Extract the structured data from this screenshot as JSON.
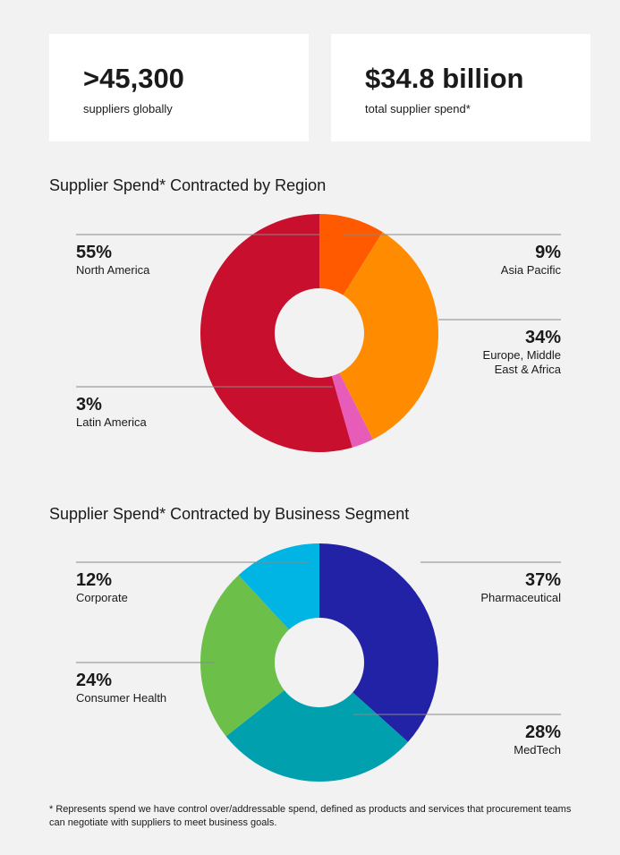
{
  "stats": [
    {
      "value": ">45,300",
      "label": "suppliers globally"
    },
    {
      "value": "$34.8 billion",
      "label": "total supplier spend*"
    }
  ],
  "chart_data": [
    {
      "type": "pie",
      "title": "Supplier Spend* Contracted by Region",
      "donut": true,
      "categories": [
        "Asia Pacific",
        "Europe, Middle East & Africa",
        "Latin America",
        "North America"
      ],
      "values": [
        9,
        34,
        3,
        55
      ],
      "value_labels": [
        "9%",
        "34%",
        "3%",
        "55%"
      ],
      "colors": [
        "#ff5a00",
        "#ff8c00",
        "#e65cb8",
        "#c8102e"
      ]
    },
    {
      "type": "pie",
      "title": "Supplier Spend* Contracted by Business Segment",
      "donut": true,
      "categories": [
        "Pharmaceutical",
        "MedTech",
        "Consumer Health",
        "Corporate"
      ],
      "values": [
        37,
        28,
        24,
        12
      ],
      "value_labels": [
        "37%",
        "28%",
        "24%",
        "12%"
      ],
      "colors": [
        "#2222a6",
        "#00a0ae",
        "#6cc04a",
        "#00b4e4"
      ]
    }
  ],
  "footnote": "* Represents spend we have control over/addressable spend, defined as products and services that procurement teams can negotiate with suppliers to meet business goals."
}
